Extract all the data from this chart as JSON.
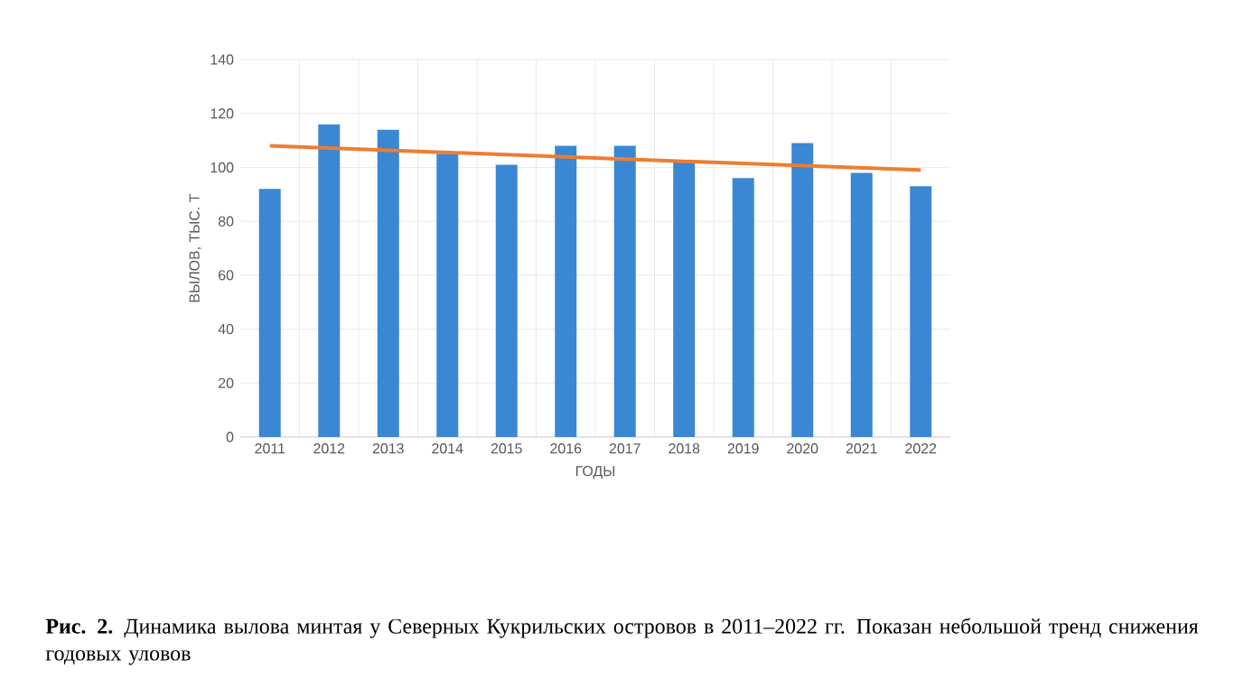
{
  "chart_data": {
    "type": "bar",
    "x": [
      2011,
      2012,
      2013,
      2014,
      2015,
      2016,
      2017,
      2018,
      2019,
      2020,
      2021,
      2022
    ],
    "series": [
      {
        "color": "#3a87d4",
        "values": [
          92,
          116,
          114,
          105,
          101,
          108,
          108,
          102,
          96,
          109,
          98,
          93
        ]
      },
      {
        "type": "line",
        "color": "#ed7d31",
        "x": [
          2011,
          2022
        ],
        "values": [
          108,
          99
        ]
      }
    ],
    "xlim": [
      2010.5,
      2022.5
    ],
    "xticks": [
      2011,
      2012,
      2013,
      2014,
      2015,
      2016,
      2017,
      2018,
      2019,
      2020,
      2021,
      2022
    ],
    "ylim": [
      0,
      140
    ],
    "yticks": [
      0,
      20,
      40,
      60,
      80,
      100,
      120,
      140
    ],
    "xlabel": "ГОДЫ",
    "ylabel": "ВЫЛОВ, ТЫС. Т",
    "grid": true,
    "annotations": [
      "**Рис. 2.** Динамика вылова минтая у Северных Кукрильских островов в 2011–2022 гг. Показан небольшой тренд снижения годовых уловов"
    ]
  }
}
